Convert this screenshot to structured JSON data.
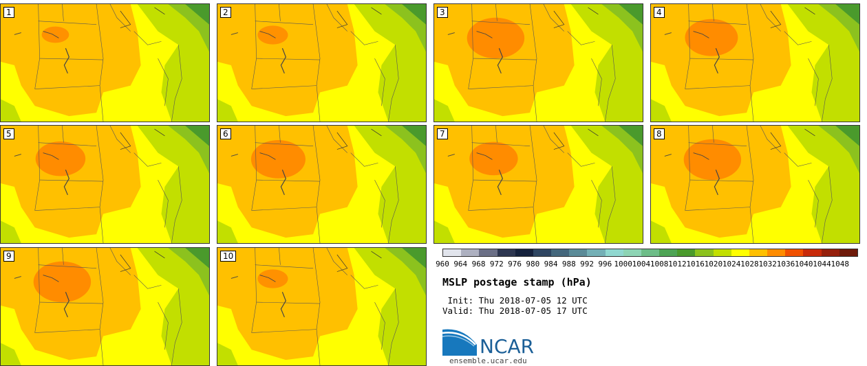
{
  "panels": [
    {
      "label": "1",
      "core": 0
    },
    {
      "label": "2",
      "core": 0.1
    },
    {
      "label": "3",
      "core": 1.0
    },
    {
      "label": "4",
      "core": 0.85
    },
    {
      "label": "5",
      "core": 0.75
    },
    {
      "label": "6",
      "core": 0.9
    },
    {
      "label": "7",
      "core": 0.7
    },
    {
      "label": "8",
      "core": 1.0
    },
    {
      "label": "9",
      "core": 1.0
    },
    {
      "label": "10",
      "core": 0.1
    }
  ],
  "colorbar": {
    "colors": [
      "#e1e4ec",
      "#adb0c0",
      "#6b6f86",
      "#2d3650",
      "#15213c",
      "#2e4561",
      "#44677c",
      "#5b8b98",
      "#74b0b6",
      "#90d8d0",
      "#8dd4b4",
      "#6dbd88",
      "#4ea455",
      "#4a9a2c",
      "#8cc21e",
      "#c2df00",
      "#ffff00",
      "#ffc000",
      "#ff8c00",
      "#f05000",
      "#c82a0a",
      "#96200c",
      "#6e1a0a"
    ],
    "ticks": [
      "960",
      "964",
      "968",
      "972",
      "976",
      "980",
      "984",
      "988",
      "992",
      "996",
      "1000",
      "1004",
      "1008",
      "1012",
      "1016",
      "1020",
      "1024",
      "1028",
      "1032",
      "1036",
      "1040",
      "1044",
      "1048"
    ]
  },
  "title": "MSLP postage stamp (hPa)",
  "init": " Init: Thu 2018-07-05 12 UTC",
  "valid": "Valid: Thu 2018-07-05 17 UTC",
  "logo": {
    "text": "NCAR",
    "url": "ensemble.ucar.edu"
  }
}
